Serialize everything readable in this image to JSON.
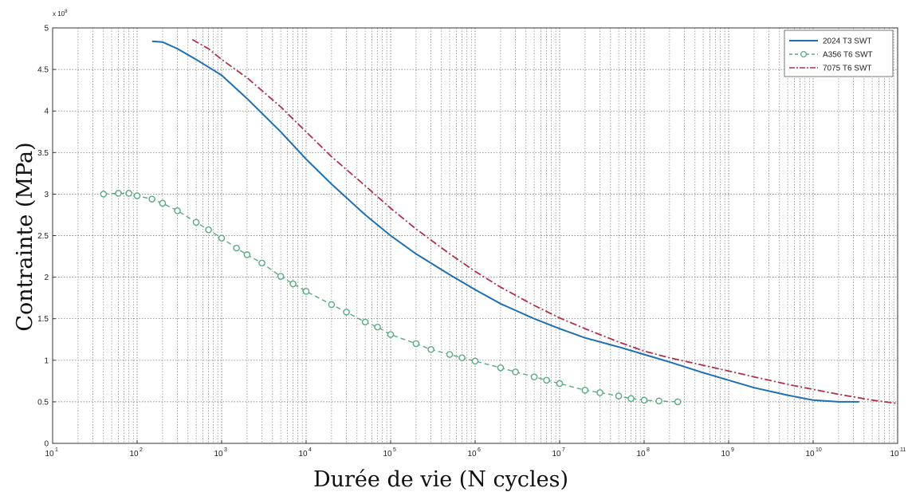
{
  "chart_data": {
    "type": "line",
    "xlabel": "Durée de vie (N cycles)",
    "ylabel": "Contrainte (MPa)",
    "x_scale": "log",
    "xlim": [
      10,
      100000000000
    ],
    "ylim": [
      0,
      500
    ],
    "grid": true,
    "legend_position": "top-right",
    "y_multiplier": {
      "base": "x 10",
      "exponent": "8"
    },
    "x_ticks": [
      {
        "base": "10",
        "exp": "1",
        "value": 10
      },
      {
        "base": "10",
        "exp": "2",
        "value": 100
      },
      {
        "base": "10",
        "exp": "3",
        "value": 1000
      },
      {
        "base": "10",
        "exp": "4",
        "value": 10000
      },
      {
        "base": "10",
        "exp": "5",
        "value": 100000
      },
      {
        "base": "10",
        "exp": "6",
        "value": 1000000
      },
      {
        "base": "10",
        "exp": "7",
        "value": 10000000
      },
      {
        "base": "10",
        "exp": "8",
        "value": 100000000
      },
      {
        "base": "10",
        "exp": "9",
        "value": 1000000000
      },
      {
        "base": "10",
        "exp": "10",
        "value": 10000000000
      },
      {
        "base": "10",
        "exp": "11",
        "value": 100000000000
      }
    ],
    "y_ticks": [
      {
        "label": "0",
        "value": 0
      },
      {
        "label": "0.5",
        "value": 50
      },
      {
        "label": "1",
        "value": 100
      },
      {
        "label": "1.5",
        "value": 150
      },
      {
        "label": "2",
        "value": 200
      },
      {
        "label": "2.5",
        "value": 250
      },
      {
        "label": "3",
        "value": 300
      },
      {
        "label": "3.5",
        "value": 350
      },
      {
        "label": "4",
        "value": 400
      },
      {
        "label": "4.5",
        "value": 450
      },
      {
        "label": "5",
        "value": 500
      }
    ],
    "series": [
      {
        "name": "2024 T3 SWT",
        "color": "#1f6fb4",
        "style": "solid",
        "points": [
          [
            150,
            484
          ],
          [
            200,
            483
          ],
          [
            300,
            475
          ],
          [
            500,
            462
          ],
          [
            1000,
            443
          ],
          [
            2000,
            415
          ],
          [
            5000,
            375
          ],
          [
            10000,
            342
          ],
          [
            20000,
            312
          ],
          [
            50000,
            275
          ],
          [
            100000,
            250
          ],
          [
            200000,
            228
          ],
          [
            500000,
            203
          ],
          [
            1000000,
            185
          ],
          [
            2000000,
            168
          ],
          [
            5000000,
            150
          ],
          [
            10000000,
            138
          ],
          [
            20000000,
            127
          ],
          [
            50000000,
            116
          ],
          [
            100000000,
            107
          ],
          [
            200000000,
            98
          ],
          [
            500000000,
            85
          ],
          [
            1000000000,
            76
          ],
          [
            2000000000,
            67
          ],
          [
            5000000000,
            58
          ],
          [
            10000000000,
            52
          ],
          [
            20000000000,
            50
          ],
          [
            35000000000,
            50
          ]
        ]
      },
      {
        "name": "A356 T6 SWT",
        "color": "#5aaa82",
        "style": "dashed-circles",
        "points": [
          [
            40,
            300
          ],
          [
            60,
            301
          ],
          [
            80,
            301
          ],
          [
            100,
            298
          ],
          [
            150,
            294
          ],
          [
            200,
            289
          ],
          [
            300,
            280
          ],
          [
            500,
            266
          ],
          [
            700,
            257
          ],
          [
            1000,
            247
          ],
          [
            1500,
            235
          ],
          [
            2000,
            227
          ],
          [
            3000,
            217
          ],
          [
            5000,
            201
          ],
          [
            7000,
            192
          ],
          [
            10000,
            183
          ],
          [
            20000,
            167
          ],
          [
            30000,
            158
          ],
          [
            50000,
            146
          ],
          [
            70000,
            140
          ],
          [
            100000,
            131
          ],
          [
            200000,
            120
          ],
          [
            300000,
            113
          ],
          [
            500000,
            107
          ],
          [
            700000,
            103
          ],
          [
            1000000,
            99
          ],
          [
            2000000,
            91
          ],
          [
            3000000,
            86
          ],
          [
            5000000,
            80
          ],
          [
            7000000,
            76
          ],
          [
            10000000,
            72
          ],
          [
            20000000,
            64
          ],
          [
            30000000,
            61
          ],
          [
            50000000,
            57
          ],
          [
            70000000,
            54
          ],
          [
            100000000,
            52
          ],
          [
            150000000,
            51
          ],
          [
            250000000,
            50
          ]
        ]
      },
      {
        "name": "7075 T6 SWT",
        "color": "#b0304a",
        "style": "dash-dot",
        "points": [
          [
            450,
            486
          ],
          [
            700,
            475
          ],
          [
            1000,
            462
          ],
          [
            2000,
            440
          ],
          [
            5000,
            405
          ],
          [
            10000,
            375
          ],
          [
            20000,
            345
          ],
          [
            50000,
            310
          ],
          [
            100000,
            283
          ],
          [
            200000,
            258
          ],
          [
            500000,
            228
          ],
          [
            1000000,
            207
          ],
          [
            2000000,
            188
          ],
          [
            5000000,
            166
          ],
          [
            10000000,
            151
          ],
          [
            20000000,
            138
          ],
          [
            50000000,
            122
          ],
          [
            100000000,
            111
          ],
          [
            200000000,
            103
          ],
          [
            500000000,
            94
          ],
          [
            1000000000,
            87
          ],
          [
            2000000000,
            80
          ],
          [
            5000000000,
            71
          ],
          [
            10000000000,
            65
          ],
          [
            20000000000,
            59
          ],
          [
            50000000000,
            52
          ],
          [
            100000000000,
            48
          ]
        ]
      }
    ]
  }
}
